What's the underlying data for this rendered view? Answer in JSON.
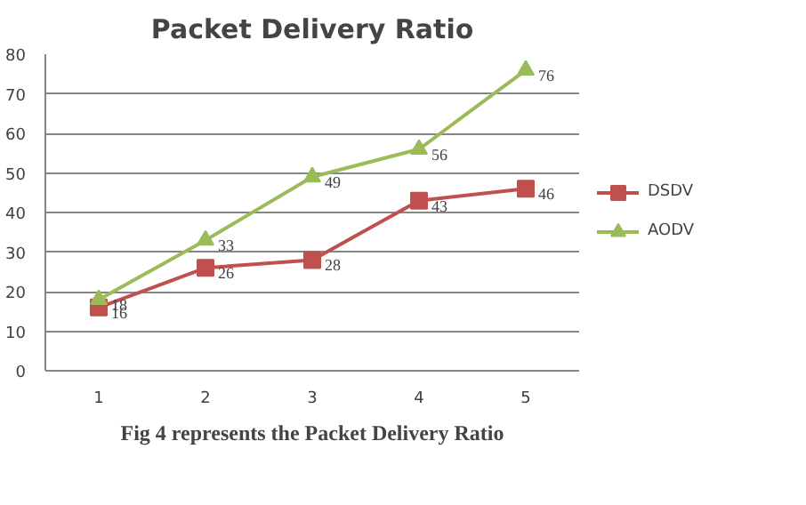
{
  "chart_data": {
    "type": "line",
    "title": "Packet Delivery Ratio",
    "categories": [
      "1",
      "2",
      "3",
      "4",
      "5"
    ],
    "series": [
      {
        "name": "DSDV",
        "color": "#c0504d",
        "marker": "square",
        "values": [
          16,
          26,
          28,
          43,
          46
        ]
      },
      {
        "name": "AODV",
        "color": "#9bbb59",
        "marker": "triangle",
        "values": [
          18,
          33,
          49,
          56,
          76
        ]
      }
    ],
    "ylim": [
      0,
      80
    ],
    "yticks": [
      0,
      10,
      20,
      30,
      40,
      50,
      60,
      70,
      80
    ],
    "grid": "y",
    "legend": "right",
    "data_labels": true,
    "annotations": [
      "Fig 4 represents the Packet Delivery Ratio"
    ]
  }
}
